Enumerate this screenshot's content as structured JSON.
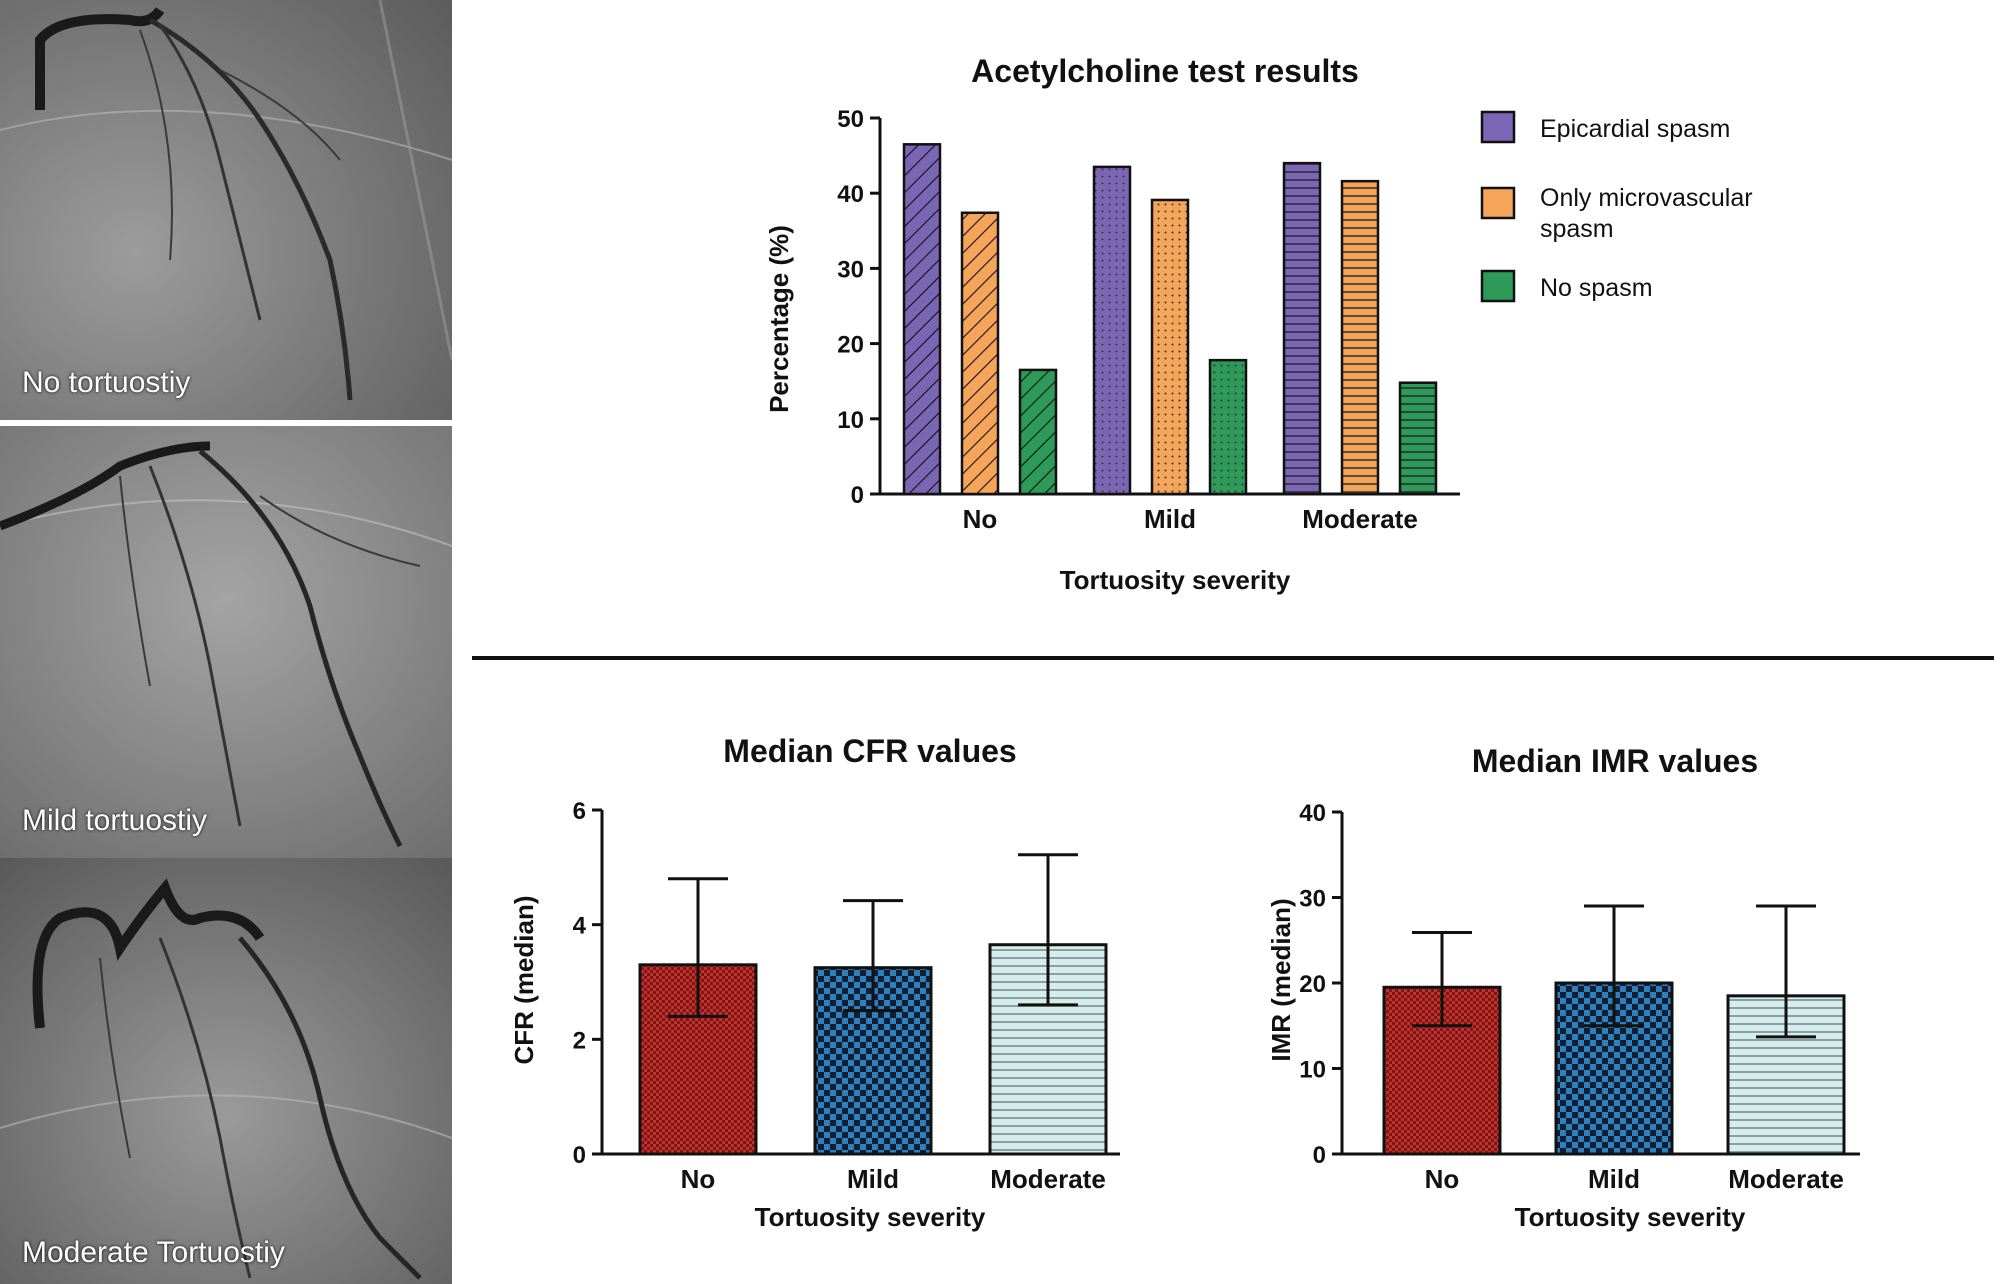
{
  "angiograms": [
    {
      "label": "No tortuostiy"
    },
    {
      "label": "Mild tortuostiy"
    },
    {
      "label": "Moderate Tortuostiy"
    }
  ],
  "colors": {
    "epicardial": "#7b66b5",
    "microvascular": "#f5a55a",
    "nospasm": "#2e9a5a",
    "cfr_no": "#c0322f",
    "cfr_mild": "#2f7fbf",
    "cfr_moderate": "#cfe6e6"
  },
  "chart_data": [
    {
      "id": "acetylcholine",
      "type": "bar",
      "title": "Acetylcholine test results",
      "xlabel": "Tortuosity severity",
      "ylabel": "Percentage (%)",
      "categories": [
        "No",
        "Mild",
        "Moderate"
      ],
      "ylim": [
        0,
        50
      ],
      "yticks": [
        0,
        10,
        20,
        30,
        40,
        50
      ],
      "series": [
        {
          "name": "Epicardial spasm",
          "values": [
            46.5,
            43.5,
            44.0
          ]
        },
        {
          "name": "Only microvascular spasm",
          "values": [
            37.4,
            39.1,
            41.6
          ]
        },
        {
          "name": "No spasm",
          "values": [
            16.5,
            17.8,
            14.8
          ]
        }
      ],
      "legend": {
        "position": "right",
        "entries": [
          "Epicardial spasm",
          "Only microvascular",
          "spasm",
          "No spasm"
        ]
      }
    },
    {
      "id": "cfr",
      "type": "bar",
      "title": "Median CFR values",
      "xlabel": "Tortuosity severity",
      "ylabel": "CFR (median)",
      "categories": [
        "No",
        "Mild",
        "Moderate"
      ],
      "ylim": [
        0,
        6
      ],
      "yticks": [
        0,
        2,
        4,
        6
      ],
      "values": [
        3.3,
        3.25,
        3.65
      ],
      "error_low": [
        2.4,
        2.5,
        2.6
      ],
      "error_high": [
        4.8,
        4.42,
        5.22
      ]
    },
    {
      "id": "imr",
      "type": "bar",
      "title": "Median IMR values",
      "xlabel": "Tortuosity severity",
      "ylabel": "IMR (median)",
      "categories": [
        "No",
        "Mild",
        "Moderate"
      ],
      "ylim": [
        0,
        40
      ],
      "yticks": [
        0,
        10,
        20,
        30,
        40
      ],
      "values": [
        19.5,
        20.0,
        18.5
      ],
      "error_low": [
        15.0,
        15.0,
        13.7
      ],
      "error_high": [
        25.9,
        29.0,
        29.0
      ]
    }
  ]
}
